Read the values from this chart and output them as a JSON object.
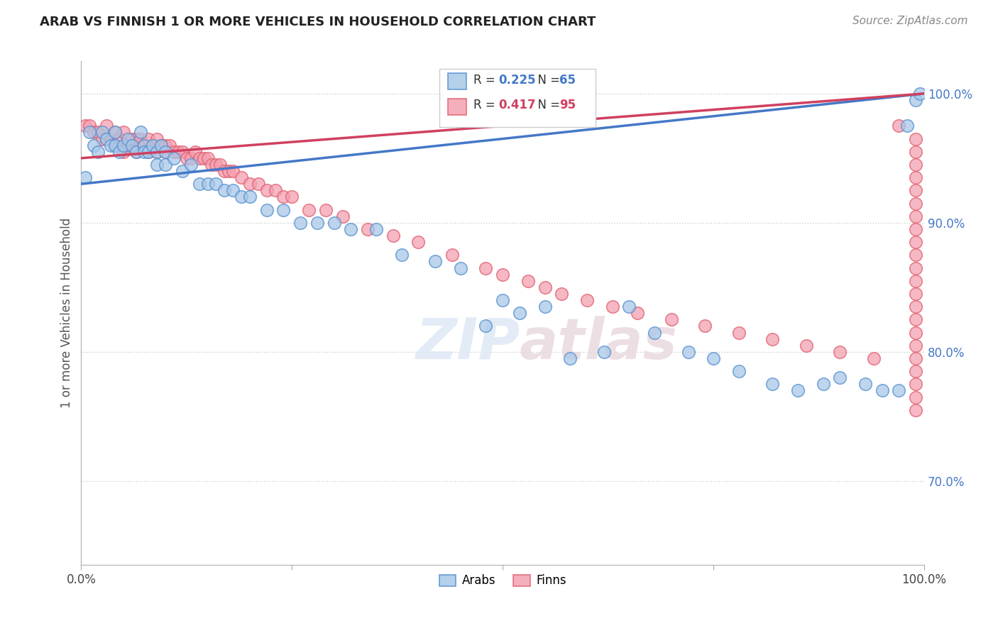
{
  "title": "ARAB VS FINNISH 1 OR MORE VEHICLES IN HOUSEHOLD CORRELATION CHART",
  "source": "Source: ZipAtlas.com",
  "ylabel": "1 or more Vehicles in Household",
  "xlim": [
    0.0,
    1.0
  ],
  "ylim": [
    0.635,
    1.025
  ],
  "yticks": [
    0.7,
    0.8,
    0.9,
    1.0
  ],
  "ytick_labels": [
    "70.0%",
    "80.0%",
    "90.0%",
    "100.0%"
  ],
  "arab_R": 0.225,
  "arab_N": 65,
  "finn_R": 0.417,
  "finn_N": 95,
  "arab_color": "#a8c8e8",
  "finn_color": "#f4a0b0",
  "arab_edge_color": "#5590d0",
  "finn_edge_color": "#e06070",
  "arab_line_color": "#4478c8",
  "finn_line_color": "#d04060",
  "legend_arab": "Arabs",
  "legend_finn": "Finns",
  "background_color": "#ffffff",
  "grid_color": "#cccccc",
  "title_color": "#222222",
  "source_color": "#888888",
  "ytick_color": "#4478c8",
  "watermark_color": "#e0e8f0",
  "arab_x": [
    0.005,
    0.01,
    0.015,
    0.02,
    0.025,
    0.03,
    0.035,
    0.04,
    0.04,
    0.045,
    0.05,
    0.055,
    0.06,
    0.065,
    0.07,
    0.075,
    0.075,
    0.08,
    0.085,
    0.09,
    0.09,
    0.095,
    0.1,
    0.1,
    0.11,
    0.12,
    0.13,
    0.14,
    0.15,
    0.16,
    0.17,
    0.18,
    0.19,
    0.2,
    0.22,
    0.24,
    0.26,
    0.28,
    0.3,
    0.32,
    0.35,
    0.38,
    0.42,
    0.45,
    0.48,
    0.5,
    0.52,
    0.55,
    0.58,
    0.62,
    0.65,
    0.68,
    0.72,
    0.75,
    0.78,
    0.82,
    0.85,
    0.88,
    0.9,
    0.93,
    0.95,
    0.97,
    0.98,
    0.99,
    0.995
  ],
  "arab_y": [
    0.935,
    0.97,
    0.96,
    0.955,
    0.97,
    0.965,
    0.96,
    0.97,
    0.96,
    0.955,
    0.96,
    0.965,
    0.96,
    0.955,
    0.97,
    0.96,
    0.955,
    0.955,
    0.96,
    0.955,
    0.945,
    0.96,
    0.955,
    0.945,
    0.95,
    0.94,
    0.945,
    0.93,
    0.93,
    0.93,
    0.925,
    0.925,
    0.92,
    0.92,
    0.91,
    0.91,
    0.9,
    0.9,
    0.9,
    0.895,
    0.895,
    0.875,
    0.87,
    0.865,
    0.82,
    0.84,
    0.83,
    0.835,
    0.795,
    0.8,
    0.835,
    0.815,
    0.8,
    0.795,
    0.785,
    0.775,
    0.77,
    0.775,
    0.78,
    0.775,
    0.77,
    0.77,
    0.975,
    0.995,
    1.0
  ],
  "finn_x": [
    0.005,
    0.01,
    0.015,
    0.02,
    0.025,
    0.03,
    0.03,
    0.035,
    0.04,
    0.04,
    0.045,
    0.05,
    0.05,
    0.055,
    0.06,
    0.065,
    0.065,
    0.07,
    0.075,
    0.08,
    0.08,
    0.085,
    0.09,
    0.09,
    0.095,
    0.1,
    0.1,
    0.105,
    0.11,
    0.115,
    0.12,
    0.125,
    0.13,
    0.135,
    0.14,
    0.145,
    0.15,
    0.155,
    0.16,
    0.165,
    0.17,
    0.175,
    0.18,
    0.19,
    0.2,
    0.21,
    0.22,
    0.23,
    0.24,
    0.25,
    0.27,
    0.29,
    0.31,
    0.34,
    0.37,
    0.4,
    0.44,
    0.48,
    0.5,
    0.53,
    0.55,
    0.57,
    0.6,
    0.63,
    0.66,
    0.7,
    0.74,
    0.78,
    0.82,
    0.86,
    0.9,
    0.94,
    0.97,
    0.99,
    0.99,
    0.99,
    0.99,
    0.99,
    0.99,
    0.99,
    0.99,
    0.99,
    0.99,
    0.99,
    0.99,
    0.99,
    0.99,
    0.99,
    0.99,
    0.99,
    0.99,
    0.99,
    0.99,
    0.99,
    0.99
  ],
  "finn_y": [
    0.975,
    0.975,
    0.97,
    0.97,
    0.965,
    0.975,
    0.965,
    0.965,
    0.97,
    0.96,
    0.965,
    0.97,
    0.955,
    0.96,
    0.965,
    0.965,
    0.955,
    0.965,
    0.96,
    0.965,
    0.955,
    0.96,
    0.965,
    0.955,
    0.96,
    0.96,
    0.955,
    0.96,
    0.955,
    0.955,
    0.955,
    0.95,
    0.95,
    0.955,
    0.95,
    0.95,
    0.95,
    0.945,
    0.945,
    0.945,
    0.94,
    0.94,
    0.94,
    0.935,
    0.93,
    0.93,
    0.925,
    0.925,
    0.92,
    0.92,
    0.91,
    0.91,
    0.905,
    0.895,
    0.89,
    0.885,
    0.875,
    0.865,
    0.86,
    0.855,
    0.85,
    0.845,
    0.84,
    0.835,
    0.83,
    0.825,
    0.82,
    0.815,
    0.81,
    0.805,
    0.8,
    0.795,
    0.975,
    0.965,
    0.955,
    0.945,
    0.935,
    0.925,
    0.915,
    0.905,
    0.895,
    0.885,
    0.875,
    0.865,
    0.855,
    0.845,
    0.835,
    0.825,
    0.815,
    0.805,
    0.795,
    0.785,
    0.775,
    0.765,
    0.755
  ]
}
